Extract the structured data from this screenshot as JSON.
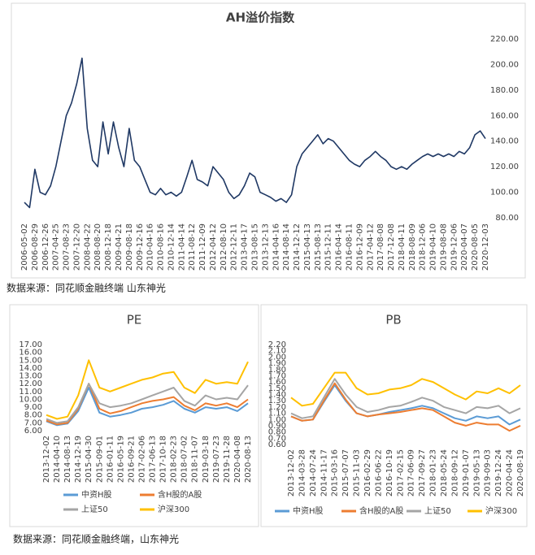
{
  "chart_data": [
    {
      "type": "line",
      "title": "AH溢价指数",
      "source": "数据来源：同花顺金融终端    山东神光",
      "y_axis_side": "right",
      "grid": false,
      "categories": [
        "2006-05-02",
        null,
        "2006-08-29",
        null,
        "2006-12-26",
        null,
        "2007-04-25",
        null,
        "2007-08-23",
        null,
        "2007-12-20",
        null,
        "2008-04-22",
        null,
        "2008-08-20",
        null,
        "2008-12-18",
        null,
        "2009-04-21",
        null,
        "2009-08-18",
        null,
        "2009-12-16",
        null,
        "2010-04-16",
        null,
        "2010-08-16",
        null,
        "2010-12-14",
        null,
        "2011-04-14",
        null,
        "2011-08-12",
        null,
        "2011-12-09",
        null,
        "2012-04-12",
        null,
        "2012-08-10",
        null,
        "2012-12-11",
        null,
        "2013-04-17",
        null,
        "2013-08-15",
        null,
        "2013-12-13",
        null,
        "2014-04-16",
        null,
        "2014-08-14",
        null,
        "2014-12-12",
        null,
        "2015-04-13",
        null,
        "2015-08-13",
        null,
        "2015-12-11",
        null,
        "2016-04-14",
        null,
        "2016-08-11",
        null,
        "2016-12-09",
        null,
        "2017-04-12",
        null,
        "2017-08-08",
        null,
        "2017-12-08",
        null,
        "2018-04-11",
        null,
        "2018-08-09",
        null,
        "2018-12-06",
        null,
        "2019-04-10",
        null,
        "2019-08-08",
        null,
        "2019-12-06",
        null,
        "2020-04-07",
        null,
        "2020-08-05",
        null,
        "2020-12-03"
      ],
      "series": [
        {
          "name": "AH溢价指数",
          "color": "#1f3864",
          "values": [
            92,
            88,
            118,
            100,
            98,
            105,
            120,
            140,
            160,
            170,
            185,
            205,
            150,
            125,
            120,
            155,
            130,
            155,
            135,
            120,
            150,
            125,
            120,
            110,
            100,
            98,
            103,
            98,
            100,
            97,
            100,
            112,
            125,
            110,
            108,
            105,
            120,
            115,
            110,
            100,
            95,
            98,
            105,
            115,
            112,
            100,
            98,
            96,
            93,
            95,
            92,
            98,
            120,
            130,
            135,
            140,
            145,
            138,
            142,
            140,
            135,
            130,
            125,
            122,
            120,
            125,
            128,
            132,
            128,
            125,
            120,
            118,
            120,
            118,
            122,
            125,
            128,
            130,
            128,
            130,
            128,
            130,
            128,
            132,
            130,
            135,
            145,
            148,
            142
          ]
        }
      ],
      "ylim": [
        80,
        220
      ],
      "yticks": [
        {
          "value": 80,
          "label": "80.00"
        },
        {
          "value": 100,
          "label": "100.00"
        },
        {
          "value": 120,
          "label": "120.00"
        },
        {
          "value": 140,
          "label": "140.00"
        },
        {
          "value": 160,
          "label": "160.00"
        },
        {
          "value": 180,
          "label": "180.00"
        },
        {
          "value": 200,
          "label": "200.00"
        },
        {
          "value": 220,
          "label": "220.00"
        }
      ]
    },
    {
      "type": "line",
      "title": "PE",
      "source": "数据来源：同花顺金融终端，山东神光",
      "y_axis_side": "left",
      "grid": false,
      "categories": [
        "2013-12-02",
        "2014-04-10",
        "2014-08-13",
        "2014-12-19",
        "2015-04-30",
        "2015-09-01",
        "2016-01-11",
        "2016-05-19",
        "2016-09-21",
        "2017-02-06",
        "2017-06-13",
        "2017-10-18",
        "2018-02-23",
        "2018-07-02",
        "2018-11-07",
        "2019-03-18",
        "2019-07-23",
        "2019-11-28",
        "2020-04-08",
        "2020-08-13"
      ],
      "series": [
        {
          "name": "中资H股",
          "color": "#5b9bd5",
          "values": [
            7.2,
            6.7,
            6.9,
            8.5,
            11.5,
            8.3,
            7.8,
            8.0,
            8.3,
            8.8,
            9.0,
            9.3,
            9.8,
            8.8,
            8.3,
            9.0,
            8.8,
            9.0,
            8.5,
            9.5
          ]
        },
        {
          "name": "含H股的A股",
          "color": "#ed7d31",
          "values": [
            7.3,
            6.8,
            7.0,
            8.8,
            12.0,
            8.8,
            8.2,
            8.5,
            9.0,
            9.5,
            9.8,
            10.0,
            10.3,
            9.2,
            8.6,
            9.5,
            9.2,
            9.5,
            9.0,
            10.0
          ]
        },
        {
          "name": "上证50",
          "color": "#a5a5a5",
          "values": [
            7.5,
            7.0,
            7.2,
            9.0,
            12.0,
            9.5,
            9.0,
            9.2,
            9.5,
            10.0,
            10.5,
            11.0,
            11.5,
            9.8,
            9.2,
            10.5,
            10.0,
            10.2,
            10.0,
            11.8
          ]
        },
        {
          "name": "沪深300",
          "color": "#ffc000",
          "values": [
            8.0,
            7.5,
            7.8,
            10.5,
            15.0,
            11.5,
            11.0,
            11.5,
            12.0,
            12.5,
            12.8,
            13.3,
            13.5,
            11.5,
            10.8,
            12.5,
            12.0,
            12.2,
            12.0,
            14.8
          ]
        }
      ],
      "ylim": [
        6,
        17
      ],
      "yticks": [
        {
          "value": 6,
          "label": "6.00"
        },
        {
          "value": 7,
          "label": "7.00"
        },
        {
          "value": 8,
          "label": "8.00"
        },
        {
          "value": 9,
          "label": "9.00"
        },
        {
          "value": 10,
          "label": "10.00"
        },
        {
          "value": 11,
          "label": "11.00"
        },
        {
          "value": 12,
          "label": "12.00"
        },
        {
          "value": 13,
          "label": "13.00"
        },
        {
          "value": 14,
          "label": "14.00"
        },
        {
          "value": 15,
          "label": "15.00"
        },
        {
          "value": 16,
          "label": "16.00"
        },
        {
          "value": 17,
          "label": "17.00"
        }
      ]
    },
    {
      "type": "line",
      "title": "PB",
      "y_axis_side": "left",
      "grid": false,
      "categories": [
        "2013-12-02",
        "2014-03-28",
        "2014-07-24",
        "2014-11-17",
        "2015-03-16",
        "2015-07-07",
        "2015-11-03",
        "2016-02-29",
        "2016-06-22",
        "2016-10-19",
        "2017-02-15",
        "2017-06-09",
        "2017-09-27",
        "2018-01-23",
        "2018-05-24",
        "2018-09-12",
        "2019-01-07",
        "2019-05-13",
        "2019-09-03",
        "2019-12-24",
        "2020-04-24",
        "2020-08-19"
      ],
      "series": [
        {
          "name": "中资H股",
          "color": "#5b9bd5",
          "values": [
            1.05,
            0.98,
            1.0,
            1.28,
            1.55,
            1.3,
            1.1,
            1.05,
            1.08,
            1.12,
            1.15,
            1.18,
            1.22,
            1.18,
            1.1,
            1.02,
            0.98,
            1.05,
            1.02,
            1.05,
            0.92,
            1.0
          ]
        },
        {
          "name": "含H股的A股",
          "color": "#ed7d31",
          "values": [
            1.05,
            0.98,
            1.0,
            1.3,
            1.58,
            1.32,
            1.1,
            1.05,
            1.08,
            1.1,
            1.12,
            1.15,
            1.18,
            1.15,
            1.05,
            0.95,
            0.9,
            0.95,
            0.92,
            0.92,
            0.82,
            0.9
          ]
        },
        {
          "name": "上证50",
          "color": "#a5a5a5",
          "values": [
            1.1,
            1.02,
            1.05,
            1.35,
            1.65,
            1.4,
            1.2,
            1.12,
            1.15,
            1.2,
            1.22,
            1.28,
            1.35,
            1.3,
            1.2,
            1.15,
            1.1,
            1.2,
            1.18,
            1.22,
            1.1,
            1.18
          ]
        },
        {
          "name": "沪深300",
          "color": "#ffc000",
          "values": [
            1.35,
            1.22,
            1.25,
            1.5,
            1.75,
            1.75,
            1.5,
            1.4,
            1.42,
            1.48,
            1.5,
            1.55,
            1.65,
            1.6,
            1.5,
            1.4,
            1.32,
            1.45,
            1.42,
            1.5,
            1.42,
            1.55
          ]
        }
      ],
      "ylim": [
        0.6,
        2.2
      ],
      "yticks": [
        {
          "value": 0.6,
          "label": "0.60"
        },
        {
          "value": 0.7,
          "label": "0.70"
        },
        {
          "value": 0.8,
          "label": "0.80"
        },
        {
          "value": 0.9,
          "label": "0.90"
        },
        {
          "value": 1.0,
          "label": "1.00"
        },
        {
          "value": 1.1,
          "label": "1.10"
        },
        {
          "value": 1.2,
          "label": "1.20"
        },
        {
          "value": 1.3,
          "label": "1.30"
        },
        {
          "value": 1.4,
          "label": "1.40"
        },
        {
          "value": 1.5,
          "label": "1.50"
        },
        {
          "value": 1.6,
          "label": "1.60"
        },
        {
          "value": 1.7,
          "label": "1.70"
        },
        {
          "value": 1.8,
          "label": "1.80"
        },
        {
          "value": 1.9,
          "label": "1.90"
        },
        {
          "value": 2.0,
          "label": "2.00"
        },
        {
          "value": 2.1,
          "label": "2.10"
        },
        {
          "value": 2.2,
          "label": "2.20"
        }
      ]
    }
  ]
}
